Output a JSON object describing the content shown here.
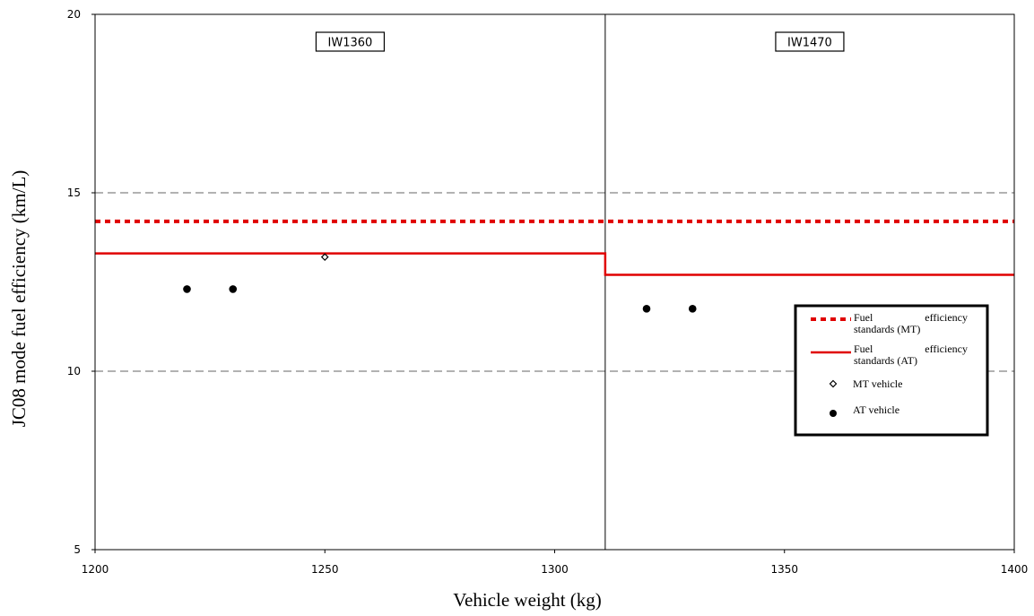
{
  "chart_data": {
    "type": "scatter",
    "xlabel": "Vehicle weight (kg)",
    "ylabel": "JC08 mode fuel efficiency (km/L)",
    "xlim": [
      1200,
      1400
    ],
    "ylim": [
      5,
      20
    ],
    "x_ticks": [
      1200,
      1250,
      1300,
      1350,
      1400
    ],
    "y_ticks": [
      5,
      10,
      15,
      20
    ],
    "grid": "horizontal dashed at 10 and 15",
    "legend_position": "right",
    "regions": [
      {
        "label": "IW1360",
        "x_start": 1200,
        "x_end": 1311
      },
      {
        "label": "IW1470",
        "x_start": 1311,
        "x_end": 1400
      }
    ],
    "region_boundary_x": 1311,
    "series": [
      {
        "name": "Fuel efficiency standards (MT)",
        "kind": "step-line",
        "style": "dotted",
        "color": "#e00000",
        "segments": [
          {
            "x": [
              1200,
              1311
            ],
            "y": 14.2
          },
          {
            "x": [
              1311,
              1400
            ],
            "y": 14.2
          }
        ]
      },
      {
        "name": "Fuel efficiency standards (AT)",
        "kind": "step-line",
        "style": "solid",
        "color": "#e00000",
        "segments": [
          {
            "x": [
              1200,
              1311
            ],
            "y": 13.3
          },
          {
            "x": [
              1311,
              1400
            ],
            "y": 12.7
          }
        ]
      },
      {
        "name": "MT vehicle",
        "kind": "points",
        "marker": "open-diamond",
        "points": [
          [
            1250,
            13.2
          ]
        ]
      },
      {
        "name": "AT vehicle",
        "kind": "points",
        "marker": "filled-circle",
        "points": [
          [
            1220,
            12.3
          ],
          [
            1230,
            12.3
          ],
          [
            1320,
            11.75
          ],
          [
            1330,
            11.75
          ]
        ]
      }
    ],
    "legend": [
      {
        "line1_left": "Fuel",
        "line1_right": "efficiency",
        "line2": "standards (MT)"
      },
      {
        "line1_left": "Fuel",
        "line1_right": "efficiency",
        "line2": "standards (AT)"
      },
      {
        "line1_left": "MT vehicle"
      },
      {
        "line1_left": "AT vehicle"
      }
    ]
  }
}
